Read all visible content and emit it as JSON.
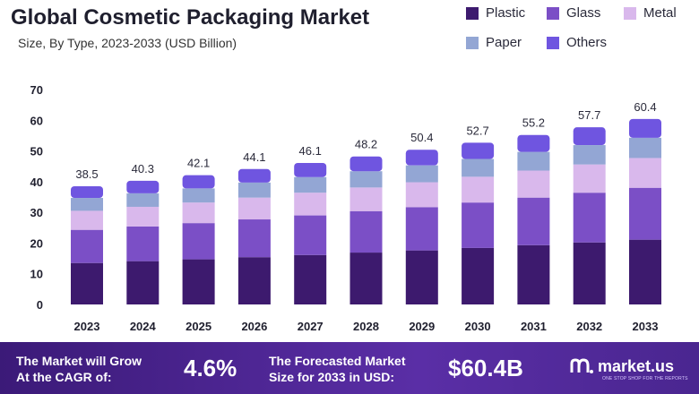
{
  "header": {
    "title": "Global Cosmetic Packaging Market",
    "subtitle": "Size, By Type, 2023-2033 (USD Billion)"
  },
  "legend": [
    {
      "label": "Plastic",
      "color": "#3d1a6e"
    },
    {
      "label": "Glass",
      "color": "#7b4fc6"
    },
    {
      "label": "Metal",
      "color": "#d9b8ec"
    },
    {
      "label": "Paper",
      "color": "#93a6d4"
    },
    {
      "label": "Others",
      "color": "#6f55e0"
    }
  ],
  "chart_data": {
    "type": "bar",
    "stacked": true,
    "title": "Global Cosmetic Packaging Market",
    "subtitle": "Size, By Type, 2023-2033 (USD Billion)",
    "categories": [
      "2023",
      "2024",
      "2025",
      "2026",
      "2027",
      "2028",
      "2029",
      "2030",
      "2031",
      "2032",
      "2033"
    ],
    "totals": [
      38.5,
      40.3,
      42.1,
      44.1,
      46.1,
      48.2,
      50.4,
      52.7,
      55.2,
      57.7,
      60.4
    ],
    "series": [
      {
        "name": "Plastic",
        "color": "#3d1a6e",
        "values": [
          13.5,
          14.1,
          14.7,
          15.4,
          16.1,
          16.9,
          17.6,
          18.4,
          19.3,
          20.2,
          21.1
        ]
      },
      {
        "name": "Glass",
        "color": "#7b4fc6",
        "values": [
          10.8,
          11.3,
          11.8,
          12.3,
          12.9,
          13.5,
          14.1,
          14.8,
          15.5,
          16.2,
          16.9
        ]
      },
      {
        "name": "Metal",
        "color": "#d9b8ec",
        "values": [
          6.2,
          6.4,
          6.7,
          7.1,
          7.4,
          7.7,
          8.1,
          8.4,
          8.8,
          9.2,
          9.7
        ]
      },
      {
        "name": "Paper",
        "color": "#93a6d4",
        "values": [
          4.2,
          4.4,
          4.6,
          4.9,
          5.1,
          5.3,
          5.5,
          5.8,
          6.1,
          6.3,
          6.6
        ]
      },
      {
        "name": "Others",
        "color": "#6f55e0",
        "values": [
          3.8,
          4.1,
          4.3,
          4.4,
          4.6,
          4.8,
          5.1,
          5.3,
          5.5,
          5.8,
          6.1
        ]
      }
    ],
    "yticks": [
      "0",
      "10",
      "20",
      "30",
      "40",
      "50",
      "60",
      "70"
    ],
    "ylim": [
      0,
      70
    ],
    "grid": false,
    "legend_position": "top-right"
  },
  "footer": {
    "cagr_text_line1": "The Market will Grow",
    "cagr_text_line2": "At the CAGR of:",
    "cagr_value": "4.6%",
    "forecast_text_line1": "The Forecasted Market",
    "forecast_text_line2": "Size for 2033 in USD:",
    "forecast_value": "$60.4B",
    "brand_name": "market.us",
    "brand_tagline": "ONE STOP SHOP FOR THE REPORTS"
  }
}
